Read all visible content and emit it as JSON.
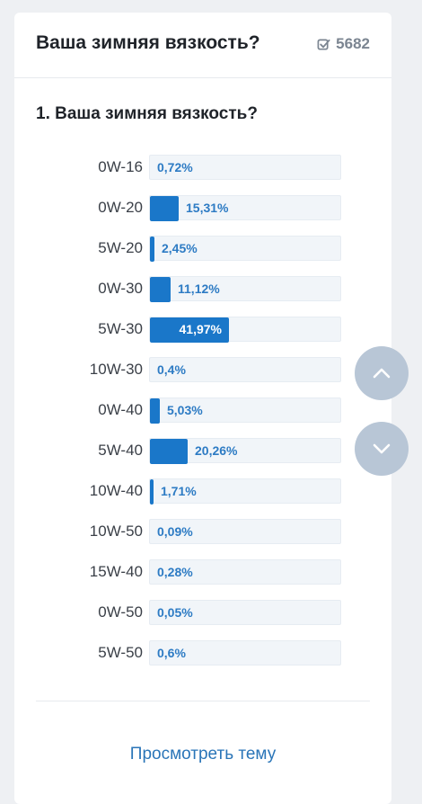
{
  "header": {
    "title": "Ваша зимняя вязкость?",
    "vote_count": "5682"
  },
  "poll": {
    "question": "1. Ваша зимняя вязкость?",
    "options": [
      {
        "label": "0W-16",
        "percent_text": "0,72%",
        "percent": 0.72
      },
      {
        "label": "0W-20",
        "percent_text": "15,31%",
        "percent": 15.31
      },
      {
        "label": "5W-20",
        "percent_text": "2,45%",
        "percent": 2.45
      },
      {
        "label": "0W-30",
        "percent_text": "11,12%",
        "percent": 11.12
      },
      {
        "label": "5W-30",
        "percent_text": "41,97%",
        "percent": 41.97
      },
      {
        "label": "10W-30",
        "percent_text": "0,4%",
        "percent": 0.4
      },
      {
        "label": "0W-40",
        "percent_text": "5,03%",
        "percent": 5.03
      },
      {
        "label": "5W-40",
        "percent_text": "20,26%",
        "percent": 20.26
      },
      {
        "label": "10W-40",
        "percent_text": "1,71%",
        "percent": 1.71
      },
      {
        "label": "10W-50",
        "percent_text": "0,09%",
        "percent": 0.09
      },
      {
        "label": "15W-40",
        "percent_text": "0,28%",
        "percent": 0.28
      },
      {
        "label": "0W-50",
        "percent_text": "0,05%",
        "percent": 0.05
      },
      {
        "label": "5W-50",
        "percent_text": "0,6%",
        "percent": 0.6
      }
    ],
    "bar_color": "#1a77c9",
    "scale_max_percent": 41.97
  },
  "footer": {
    "view_topic_label": "Просмотреть тему"
  },
  "icons": {
    "votes": "checkbox-icon",
    "scroll_up": "chevron-up-icon",
    "scroll_down": "chevron-down-icon"
  }
}
